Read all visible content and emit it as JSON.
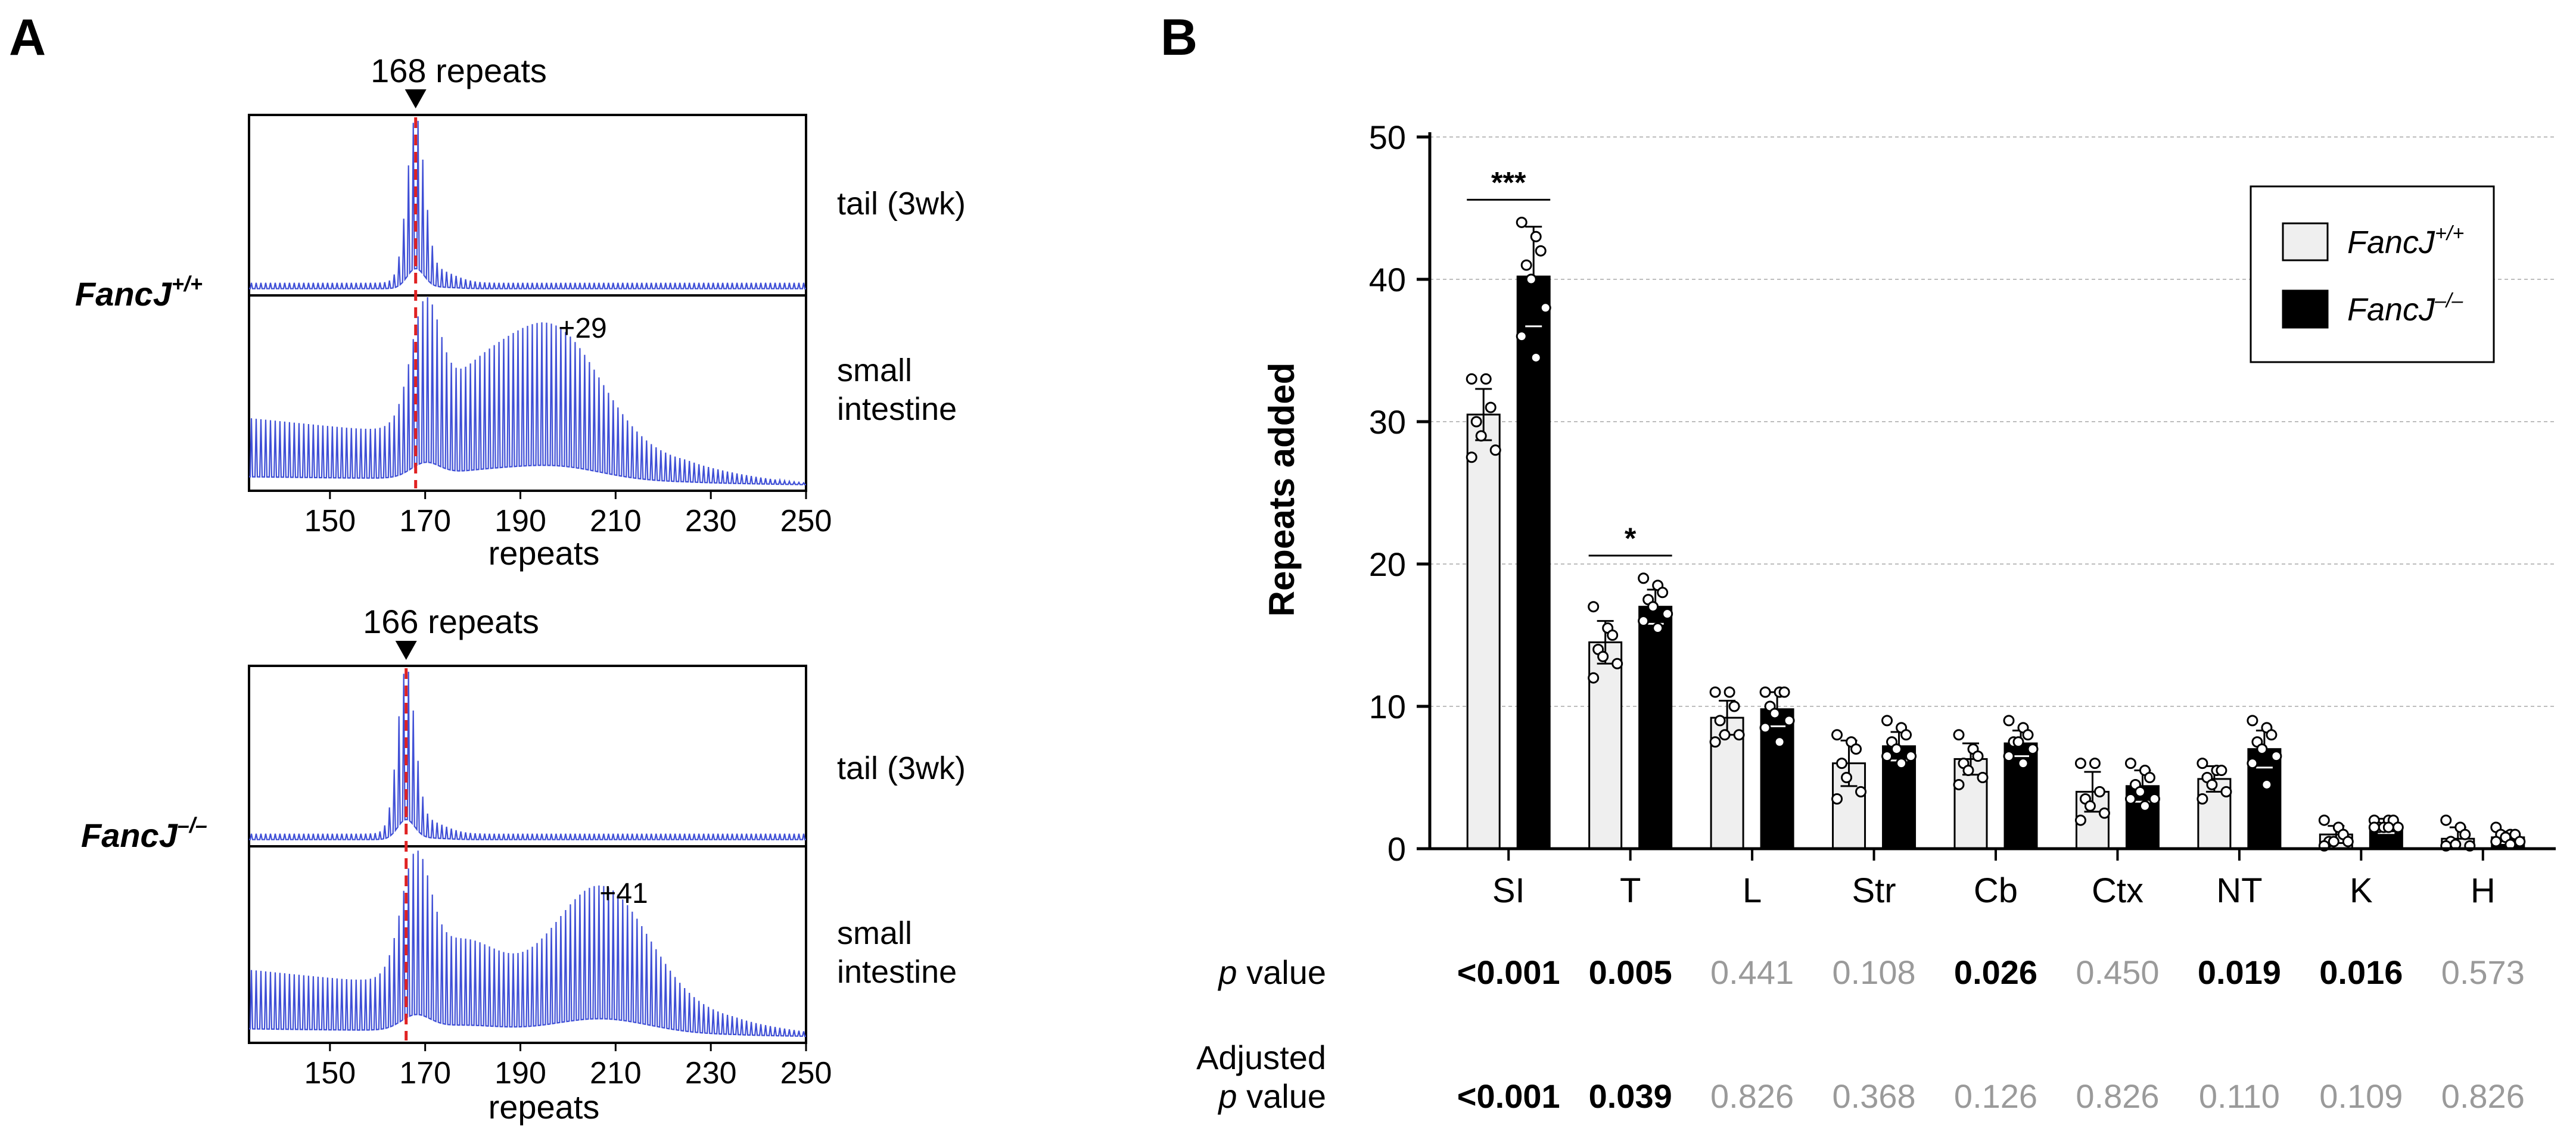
{
  "colors": {
    "trace": "#3f4fd6",
    "marker_line": "#e02222",
    "bar_wt": "#efefef",
    "bar_ko": "#000000",
    "grid": "#bdbdbd",
    "pvalue_gray": "#9a9a9a",
    "axis": "#000000"
  },
  "panelA": {
    "label": "A",
    "xlabel": "repeats",
    "x_ticks": [
      150,
      170,
      190,
      210,
      230,
      250
    ],
    "x_range": [
      133,
      250
    ],
    "groups": [
      {
        "genotype_base": "FancJ",
        "genotype_sup": "+/+",
        "marker_label": "168 repeats",
        "marker_value": 168,
        "traces": [
          {
            "tissue": "tail (3wk)",
            "peak_repeat": 168,
            "second_mode": null,
            "expansion_label": null
          },
          {
            "tissue_line1": "small",
            "tissue_line2": "intestine",
            "peak_repeat": 168,
            "second_mode": 197,
            "expansion_label": "+29"
          }
        ]
      },
      {
        "genotype_base": "FancJ",
        "genotype_sup": "–/–",
        "marker_label": "166 repeats",
        "marker_value": 166,
        "traces": [
          {
            "tissue": "tail (3wk)",
            "peak_repeat": 166,
            "second_mode": null,
            "expansion_label": null
          },
          {
            "tissue_line1": "small",
            "tissue_line2": "intestine",
            "peak_repeat": 166,
            "second_mode": 207,
            "expansion_label": "+41"
          }
        ]
      }
    ]
  },
  "panelB": {
    "label": "B",
    "chart_data": {
      "type": "bar",
      "ylabel": "Repeats added",
      "ylim": [
        0,
        50
      ],
      "yticks": [
        0,
        10,
        20,
        30,
        40,
        50
      ],
      "grid": true,
      "legend_position": "top-right",
      "categories": [
        "SI",
        "T",
        "L",
        "Str",
        "Cb",
        "Ctx",
        "NT",
        "K",
        "H"
      ],
      "series": [
        {
          "name": "FancJ",
          "name_sup": "+/+",
          "values": [
            30.5,
            14.5,
            9.2,
            6.0,
            6.3,
            4.0,
            4.9,
            1.0,
            0.7
          ],
          "errors": [
            1.8,
            1.5,
            1.2,
            1.6,
            1.1,
            1.4,
            0.9,
            0.6,
            0.8
          ],
          "points": [
            [
              33,
              33,
              31,
              30,
              29,
              28,
              27.5
            ],
            [
              17,
              15.5,
              15,
              14,
              13.5,
              13,
              12
            ],
            [
              11,
              11,
              10,
              9,
              8,
              8,
              7.5
            ],
            [
              8,
              7.5,
              7,
              6,
              5,
              4,
              3.5
            ],
            [
              8,
              7,
              6.5,
              6,
              5.5,
              5,
              4.5
            ],
            [
              6,
              6,
              4,
              3.5,
              3,
              2.5,
              2
            ],
            [
              6,
              5.5,
              5.5,
              5,
              4.5,
              4,
              3.5
            ],
            [
              2,
              1.5,
              1,
              0.5,
              0.5,
              0.5,
              0.2
            ],
            [
              2,
              1.5,
              1,
              0.5,
              0.3,
              0.2,
              0.2
            ]
          ]
        },
        {
          "name": "FancJ",
          "name_sup": "–/–",
          "values": [
            40.2,
            17.0,
            9.8,
            7.2,
            7.4,
            4.4,
            7.0,
            1.6,
            0.8
          ],
          "errors": [
            3.5,
            1.2,
            1.2,
            1.0,
            0.9,
            1.1,
            1.3,
            0.5,
            0.4
          ],
          "points": [
            [
              44,
              43,
              42,
              41,
              40,
              38,
              36,
              34.5
            ],
            [
              19,
              18.5,
              18,
              17.5,
              17,
              16.5,
              16,
              15.5
            ],
            [
              11,
              11,
              11,
              10,
              9.5,
              9,
              8.5,
              7.5
            ],
            [
              9,
              8.5,
              8,
              7.5,
              7,
              6.5,
              6.5,
              6
            ],
            [
              9,
              8.5,
              8,
              7.5,
              7.5,
              7,
              6.5,
              6
            ],
            [
              6,
              5.5,
              5,
              4.5,
              4,
              3.5,
              3.5,
              3
            ],
            [
              9,
              8.5,
              8,
              7.5,
              7,
              6.5,
              6,
              4.5
            ],
            [
              2,
              2,
              2,
              1.5,
              1.5,
              1.5,
              1.5,
              1.5
            ],
            [
              1.5,
              1,
              1,
              1,
              0.8,
              0.5,
              0.5,
              0.3
            ]
          ]
        }
      ],
      "significance": [
        {
          "category": "SI",
          "label": "***"
        },
        {
          "category": "T",
          "label": "*"
        }
      ]
    },
    "pvalue_row": {
      "label_italic": "p",
      "label_rest": " value",
      "values": [
        "<0.001",
        "0.005",
        "0.441",
        "0.108",
        "0.026",
        "0.450",
        "0.019",
        "0.016",
        "0.573"
      ],
      "bold": [
        true,
        true,
        false,
        false,
        true,
        false,
        true,
        true,
        false
      ]
    },
    "adjusted_row": {
      "label_line1": "Adjusted",
      "label_line2_italic": "p",
      "label_line2_rest": " value",
      "values": [
        "<0.001",
        "0.039",
        "0.826",
        "0.368",
        "0.126",
        "0.826",
        "0.110",
        "0.109",
        "0.826"
      ],
      "bold": [
        true,
        true,
        false,
        false,
        false,
        false,
        false,
        false,
        false
      ]
    }
  }
}
